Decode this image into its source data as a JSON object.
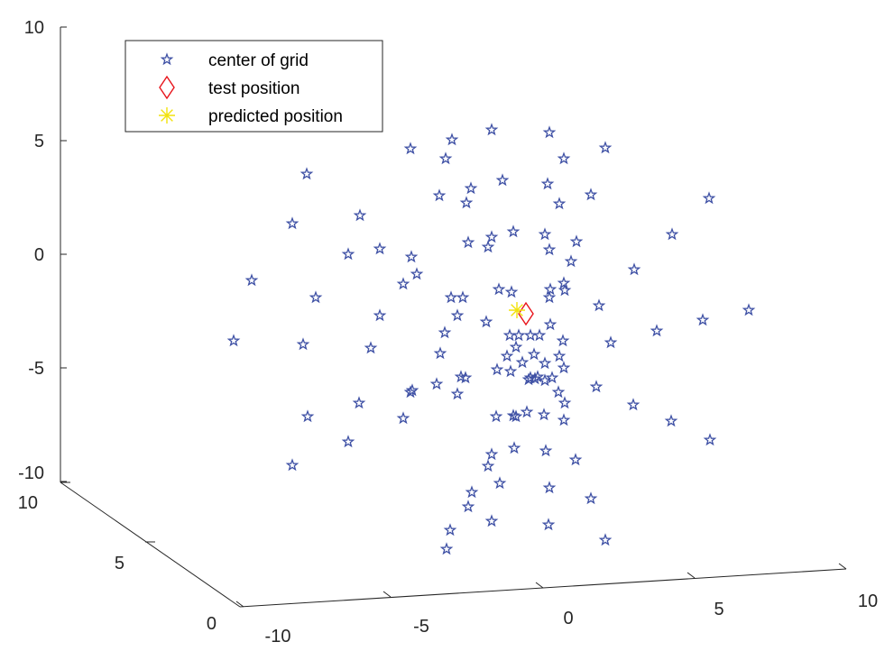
{
  "chart_data": {
    "type": "scatter",
    "title": "",
    "legend": {
      "location": "top-left",
      "entries": [
        {
          "label": "center of grid",
          "marker": "pentagram",
          "color": "#3f51a5"
        },
        {
          "label": "test position",
          "marker": "diamond",
          "color": "#e8141b"
        },
        {
          "label": "predicted position",
          "marker": "asterisk",
          "color": "#f2e20c"
        }
      ]
    },
    "axes": {
      "z": {
        "label": "",
        "ticks": [
          "10",
          "5",
          "0",
          "-5",
          "-10"
        ]
      },
      "y": {
        "label": "",
        "ticks": [
          "10",
          "5",
          "0"
        ]
      },
      "x": {
        "label": "",
        "ticks": [
          "-10",
          "-5",
          "0",
          "5",
          "10"
        ]
      }
    },
    "grid": false,
    "series": [
      {
        "name": "center of grid",
        "marker": "pentagram",
        "color": "#3f51a5",
        "points": [
          [
            545,
            144
          ],
          [
            609,
            147
          ],
          [
            501,
            155
          ],
          [
            455,
            165
          ],
          [
            671,
            164
          ],
          [
            494,
            176
          ],
          [
            625,
            176
          ],
          [
            340,
            193
          ],
          [
            557,
            200
          ],
          [
            607,
            204
          ],
          [
            522,
            209
          ],
          [
            487,
            217
          ],
          [
            655,
            216
          ],
          [
            786,
            220
          ],
          [
            517,
            225
          ],
          [
            620,
            226
          ],
          [
            399,
            239
          ],
          [
            324,
            248
          ],
          [
            745,
            260
          ],
          [
            545,
            263
          ],
          [
            569,
            257
          ],
          [
            604,
            260
          ],
          [
            519,
            269
          ],
          [
            639,
            268
          ],
          [
            541,
            274
          ],
          [
            609,
            277
          ],
          [
            421,
            276
          ],
          [
            386,
            282
          ],
          [
            456,
            285
          ],
          [
            633,
            290
          ],
          [
            703,
            299
          ],
          [
            462,
            304
          ],
          [
            279,
            311
          ],
          [
            447,
            315
          ],
          [
            625,
            314
          ],
          [
            553,
            321
          ],
          [
            610,
            321
          ],
          [
            350,
            330
          ],
          [
            500,
            330
          ],
          [
            513,
            330
          ],
          [
            567,
            324
          ],
          [
            609,
            330
          ],
          [
            626,
            322
          ],
          [
            664,
            339
          ],
          [
            830,
            344
          ],
          [
            539,
            357
          ],
          [
            507,
            350
          ],
          [
            421,
            350
          ],
          [
            779,
            355
          ],
          [
            728,
            367
          ],
          [
            610,
            360
          ],
          [
            493,
            369
          ],
          [
            259,
            378
          ],
          [
            336,
            382
          ],
          [
            411,
            386
          ],
          [
            677,
            380
          ],
          [
            588,
            372
          ],
          [
            598,
            372
          ],
          [
            624,
            378
          ],
          [
            488,
            392
          ],
          [
            551,
            410
          ],
          [
            579,
            402
          ],
          [
            604,
            403
          ],
          [
            625,
            408
          ],
          [
            562,
            395
          ],
          [
            484,
            426
          ],
          [
            511,
            418
          ],
          [
            516,
            419
          ],
          [
            588,
            419
          ],
          [
            596,
            418
          ],
          [
            612,
            419
          ],
          [
            457,
            433
          ],
          [
            455,
            435
          ],
          [
            661,
            429
          ],
          [
            619,
            435
          ],
          [
            507,
            437
          ],
          [
            398,
            447
          ],
          [
            702,
            449
          ],
          [
            626,
            447
          ],
          [
            447,
            464
          ],
          [
            341,
            462
          ],
          [
            550,
            462
          ],
          [
            569,
            461
          ],
          [
            584,
            457
          ],
          [
            603,
            460
          ],
          [
            625,
            466
          ],
          [
            744,
            467
          ],
          [
            386,
            490
          ],
          [
            787,
            488
          ],
          [
            570,
            497
          ],
          [
            605,
            500
          ],
          [
            545,
            504
          ],
          [
            638,
            510
          ],
          [
            324,
            516
          ],
          [
            541,
            517
          ],
          [
            554,
            536
          ],
          [
            609,
            541
          ],
          [
            523,
            546
          ],
          [
            519,
            562
          ],
          [
            655,
            553
          ],
          [
            545,
            578
          ],
          [
            499,
            588
          ],
          [
            608,
            582
          ],
          [
            495,
            609
          ],
          [
            671,
            599
          ],
          [
            565,
            372
          ],
          [
            575,
            372
          ],
          [
            572,
            385
          ],
          [
            592,
            393
          ],
          [
            620,
            395
          ],
          [
            566,
            412
          ],
          [
            586,
            421
          ],
          [
            593,
            420
          ],
          [
            604,
            422
          ],
          [
            572,
            462
          ]
        ]
      },
      {
        "name": "test position",
        "marker": "diamond",
        "color": "#e8141b",
        "points": [
          [
            583,
            348
          ]
        ]
      },
      {
        "name": "predicted position",
        "marker": "asterisk",
        "color": "#f2e20c",
        "points": [
          [
            573,
            344
          ]
        ]
      }
    ]
  }
}
